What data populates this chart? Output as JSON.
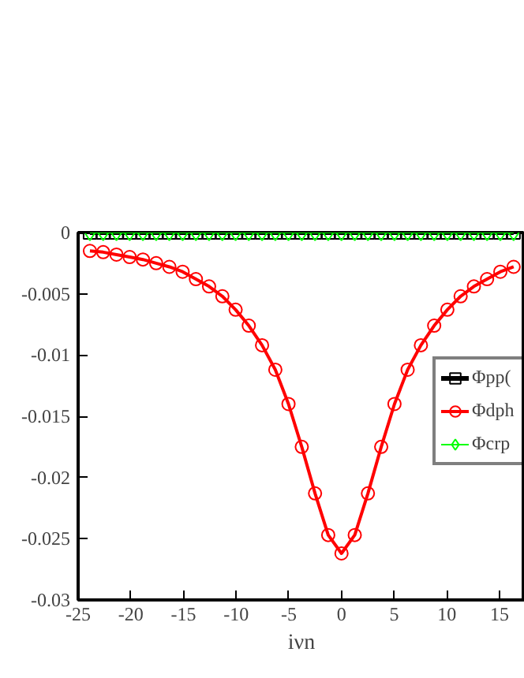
{
  "chart_data": {
    "type": "line",
    "xlabel": "iνn",
    "xlim": [
      -25,
      17.4
    ],
    "ylim": [
      -0.03,
      0
    ],
    "xticks": [
      -25,
      -20,
      -15,
      -10,
      -5,
      0,
      5,
      10,
      15
    ],
    "yticks": [
      -0.03,
      -0.025,
      -0.02,
      -0.015,
      -0.01,
      -0.005,
      0
    ],
    "x": [
      -23.88,
      -22.62,
      -21.36,
      -20.11,
      -18.85,
      -17.59,
      -16.34,
      -15.08,
      -13.82,
      -12.57,
      -11.31,
      -10.05,
      -8.8,
      -7.54,
      -6.28,
      -5.03,
      -3.77,
      -2.51,
      -1.26,
      0,
      1.26,
      2.51,
      3.77,
      5.03,
      6.28,
      7.54,
      8.8,
      10.05,
      11.31,
      12.57,
      13.82,
      15.08,
      16.34
    ],
    "series": [
      {
        "name": "Φpp(",
        "color": "#000000",
        "marker": "square",
        "values": [
          0,
          0,
          0,
          0,
          0,
          0,
          0,
          0,
          0,
          0,
          0,
          0,
          0,
          0,
          0,
          0,
          0,
          0,
          0,
          0,
          0,
          0,
          0,
          0,
          0,
          0,
          0,
          0,
          0,
          0,
          0,
          0,
          0
        ]
      },
      {
        "name": "Φdph",
        "color": "#ff0000",
        "marker": "circle",
        "values": [
          -0.0015,
          -0.0016,
          -0.0018,
          -0.002,
          -0.0022,
          -0.0025,
          -0.0028,
          -0.0032,
          -0.0038,
          -0.0044,
          -0.0052,
          -0.0063,
          -0.0076,
          -0.0092,
          -0.0112,
          -0.014,
          -0.0175,
          -0.0213,
          -0.0247,
          -0.0262,
          -0.0247,
          -0.0213,
          -0.0175,
          -0.014,
          -0.0112,
          -0.0092,
          -0.0076,
          -0.0063,
          -0.0052,
          -0.0044,
          -0.0038,
          -0.0032,
          -0.0028
        ]
      },
      {
        "name": "Φcrp",
        "color": "#00ff00",
        "marker": "diamond",
        "values": [
          0,
          0,
          0,
          0,
          0,
          0,
          0,
          0,
          0,
          0,
          0,
          0,
          0,
          0,
          0,
          0,
          0,
          0,
          0,
          0,
          0,
          0,
          0,
          0,
          0,
          0,
          0,
          0,
          0,
          0,
          0,
          0,
          0
        ]
      }
    ],
    "legend": "right",
    "grid": false,
    "line_style": "solid"
  }
}
